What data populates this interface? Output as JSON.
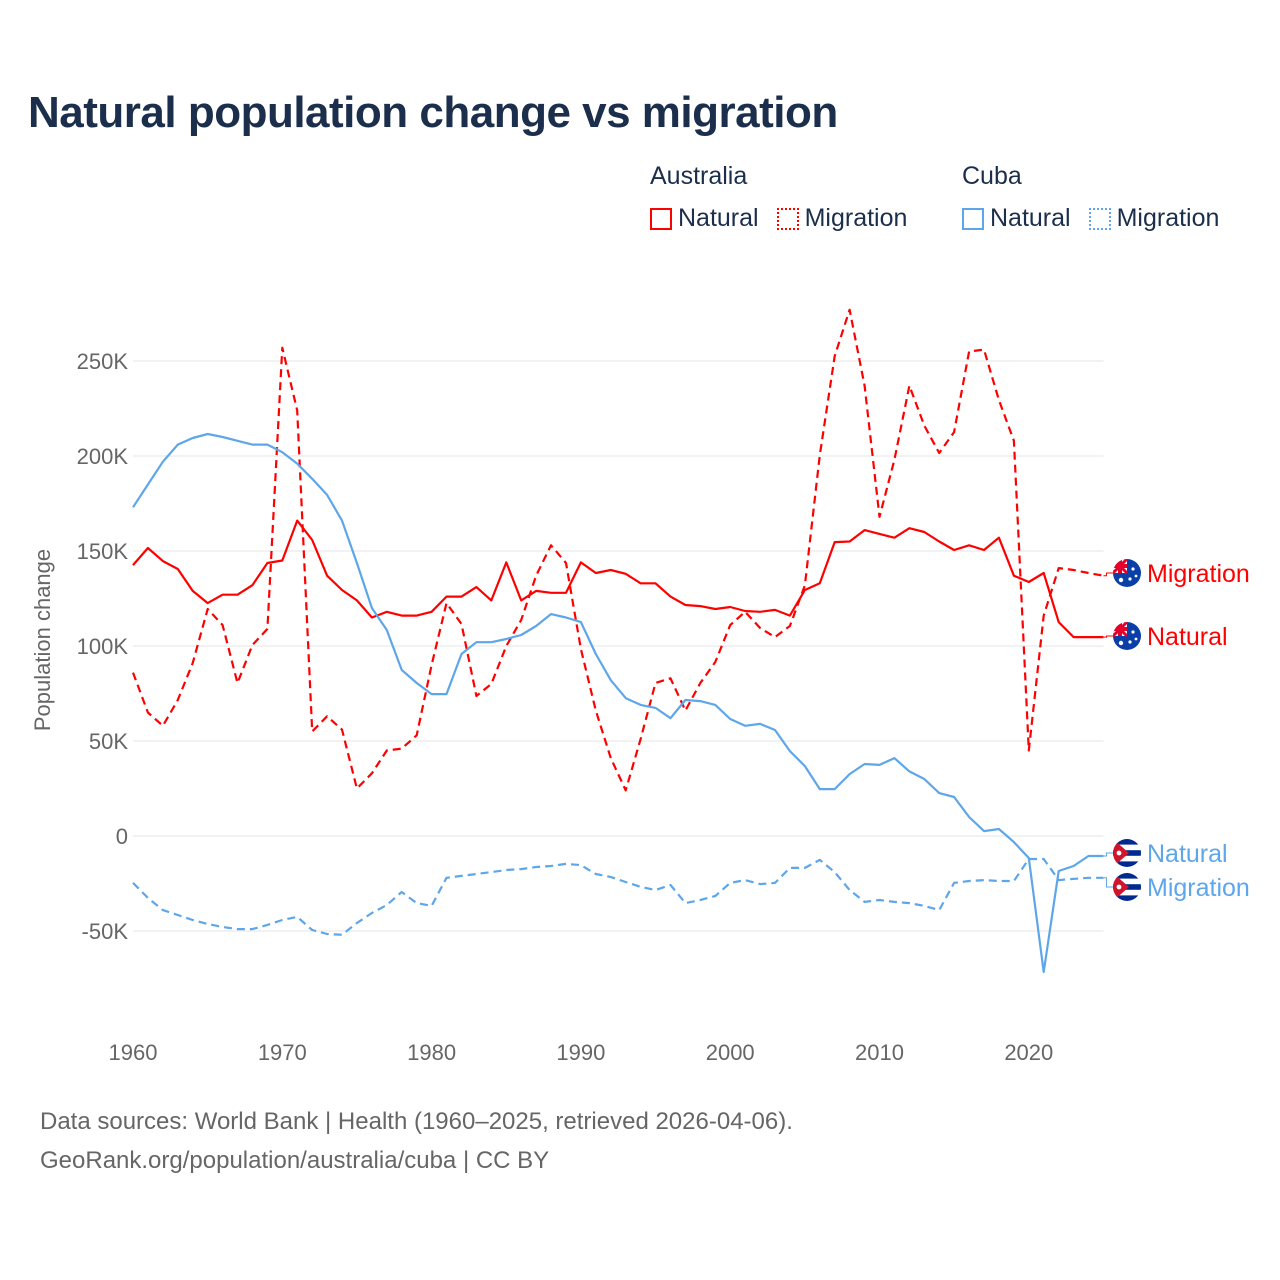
{
  "title": "Natural population change vs migration",
  "legend": {
    "groups": [
      {
        "name": "Australia",
        "items": [
          {
            "label": "Natural",
            "style": "solid"
          },
          {
            "label": "Migration",
            "style": "dotted"
          }
        ],
        "color": "#ff0000"
      },
      {
        "name": "Cuba",
        "items": [
          {
            "label": "Natural",
            "style": "solid"
          },
          {
            "label": "Migration",
            "style": "dotted"
          }
        ],
        "color": "#5ea6ea"
      }
    ]
  },
  "footer": {
    "line1": "Data sources: World Bank | Health (1960–2025, retrieved 2026-04-06).",
    "line2": "GeoRank.org/population/australia/cuba | CC BY"
  },
  "chart_data": {
    "type": "line",
    "title": "Natural population change vs migration",
    "xlabel": "",
    "ylabel": "Population change",
    "xlim": [
      1960,
      2025
    ],
    "ylim": [
      -100000,
      290000
    ],
    "xticks": [
      1960,
      1970,
      1980,
      1990,
      2000,
      2010,
      2020
    ],
    "yticks": [
      {
        "v": -50000,
        "label": "-50K"
      },
      {
        "v": 0,
        "label": "0"
      },
      {
        "v": 50000,
        "label": "50K"
      },
      {
        "v": 100000,
        "label": "100K"
      },
      {
        "v": 150000,
        "label": "150K"
      },
      {
        "v": 200000,
        "label": "200K"
      },
      {
        "v": 250000,
        "label": "250K"
      }
    ],
    "grid": true,
    "legend_position": "top-right",
    "x_start": 1960,
    "series": [
      {
        "name": "Australia Natural",
        "country": "Australia",
        "end_label": "Natural",
        "color": "#ff0000",
        "dashed": false,
        "flag": "australia",
        "values": [
          142.6,
          151.6,
          144.7,
          140.5,
          129,
          122.6,
          127,
          127,
          132,
          143.7,
          145,
          166,
          155.8,
          137,
          129.5,
          124,
          115,
          118,
          116,
          116,
          118,
          126,
          126,
          131,
          124,
          144,
          124,
          129,
          128,
          128,
          144,
          138.4,
          140,
          138,
          133,
          133,
          126,
          121.6,
          121,
          119.5,
          120.5,
          118.4,
          118,
          119,
          116,
          129.5,
          133,
          154.7,
          155,
          161,
          159,
          157,
          162,
          160,
          155,
          150.5,
          153,
          150.5,
          157,
          137,
          133.7,
          138.4,
          112.6,
          104.7,
          104.7,
          104.7
        ]
      },
      {
        "name": "Australia Migration",
        "country": "Australia",
        "end_label": "Migration",
        "color": "#ff0000",
        "dashed": true,
        "flag": "australia",
        "values": [
          86,
          65,
          58,
          71.6,
          91,
          119.5,
          111,
          80.5,
          100.5,
          109,
          257,
          224,
          55,
          63,
          56,
          25,
          33,
          45,
          46,
          53,
          90,
          122.6,
          111.6,
          73.7,
          80,
          100,
          113.7,
          137,
          153,
          143.7,
          98.4,
          66,
          41,
          24,
          51,
          80.5,
          83,
          66,
          80.5,
          91.6,
          111,
          118,
          109.5,
          104.7,
          110.5,
          132,
          200.5,
          252.6,
          277,
          237,
          168,
          198,
          237,
          216,
          201.6,
          212.6,
          255,
          256,
          229.5,
          208,
          45,
          116,
          141,
          140,
          138.4,
          137
        ]
      },
      {
        "name": "Cuba Natural",
        "country": "Cuba",
        "end_label": "Natural",
        "color": "#5ea6ea",
        "dashed": false,
        "flag": "cuba",
        "values": [
          173,
          185,
          197,
          206,
          209.5,
          211.6,
          210,
          208,
          206,
          206,
          202,
          196,
          188,
          179.5,
          166,
          143.7,
          120,
          108.4,
          87.4,
          80.5,
          74.7,
          74.7,
          95.8,
          102,
          102,
          103.7,
          105.8,
          110.5,
          116.8,
          115,
          112.6,
          95.8,
          82,
          72.6,
          69,
          67.4,
          62,
          71.6,
          71,
          69,
          61.6,
          58,
          59,
          55.8,
          44.7,
          36.8,
          24.7,
          24.7,
          32.6,
          37.9,
          37.4,
          41,
          34,
          30,
          22.6,
          20.5,
          10,
          2.6,
          3.7,
          -3.2,
          -11.6,
          -71.6,
          -18.4,
          -15.8,
          -10.5,
          -10.5
        ]
      },
      {
        "name": "Cuba Migration",
        "country": "Cuba",
        "end_label": "Migration",
        "color": "#5ea6ea",
        "dashed": true,
        "flag": "cuba",
        "values": [
          -24.7,
          -32.6,
          -39,
          -41.6,
          -44.2,
          -46.3,
          -47.9,
          -49,
          -49,
          -46.8,
          -44.2,
          -42.6,
          -49.5,
          -51.6,
          -52,
          -45.8,
          -40.5,
          -36.3,
          -29.5,
          -35.3,
          -36.8,
          -22,
          -21,
          -20,
          -19,
          -17.9,
          -17.4,
          -16.3,
          -15.8,
          -14.7,
          -15.3,
          -20,
          -21.6,
          -24.2,
          -26.8,
          -28.4,
          -25.8,
          -35.3,
          -33.7,
          -31.6,
          -24.7,
          -23.2,
          -25.3,
          -24.7,
          -16.8,
          -16.8,
          -12.6,
          -19,
          -28.4,
          -34.7,
          -33.7,
          -34.7,
          -35.3,
          -36.8,
          -39,
          -24.7,
          -23.7,
          -23.2,
          -23.7,
          -23.7,
          -12.1,
          -12.1,
          -23.2,
          -22.6,
          -22,
          -22
        ]
      }
    ],
    "value_unit": "thousands"
  }
}
